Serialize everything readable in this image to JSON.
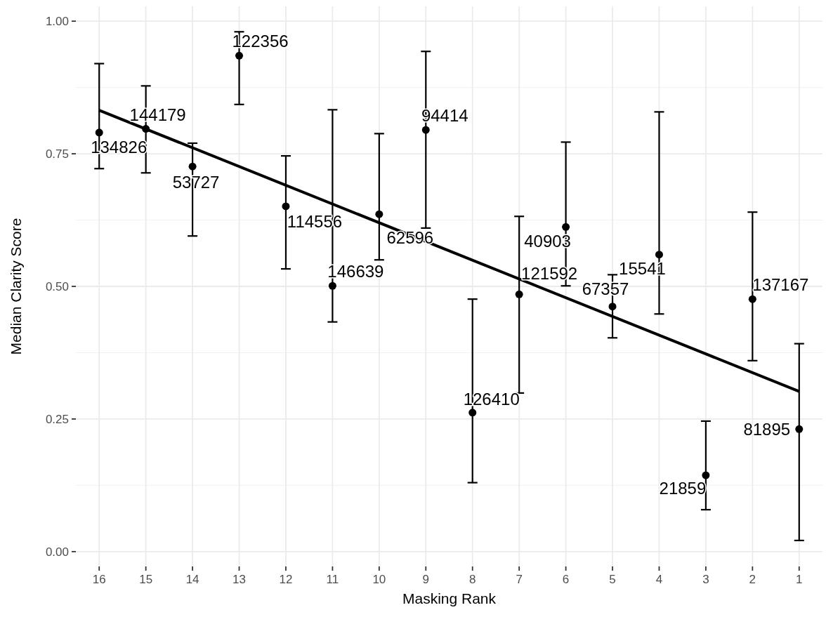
{
  "chart_data": {
    "type": "scatter",
    "xlabel": "Masking Rank",
    "ylabel": "Median Clarity Score",
    "categories": [
      "16",
      "15",
      "14",
      "13",
      "12",
      "11",
      "10",
      "9",
      "8",
      "7",
      "6",
      "5",
      "4",
      "3",
      "2",
      "1"
    ],
    "ylim": [
      -0.028,
      1.028
    ],
    "yticks": [
      {
        "value": 0,
        "label": "0.00"
      },
      {
        "value": 0.25,
        "label": "0.25"
      },
      {
        "value": 0.5,
        "label": "0.50"
      },
      {
        "value": 0.75,
        "label": "0.75"
      },
      {
        "value": 1,
        "label": "1.00"
      }
    ],
    "grid": true,
    "series": [
      {
        "color": "#000000",
        "marker": "circle",
        "values": [
          0.79,
          0.797,
          0.726,
          0.935,
          0.651,
          0.501,
          0.636,
          0.795,
          0.262,
          0.485,
          0.612,
          0.462,
          0.56,
          0.144,
          0.476,
          0.231
        ],
        "errors": [
          [
            0.722,
            0.92
          ],
          [
            0.714,
            0.878
          ],
          [
            0.595,
            0.77
          ],
          [
            0.843,
            0.98
          ],
          [
            0.533,
            0.746
          ],
          [
            0.433,
            0.833
          ],
          [
            0.55,
            0.788
          ],
          [
            0.61,
            0.943
          ],
          [
            0.13,
            0.476
          ],
          [
            0.299,
            0.632
          ],
          [
            0.501,
            0.772
          ],
          [
            0.403,
            0.522
          ],
          [
            0.448,
            0.829
          ],
          [
            0.079,
            0.246
          ],
          [
            0.36,
            0.64
          ],
          [
            0.021,
            0.392
          ]
        ]
      },
      {
        "type": "line",
        "marker": "none",
        "color": "#000000",
        "x": [
          "16",
          "1"
        ],
        "values": [
          0.832,
          0.302
        ]
      }
    ],
    "annotations": [
      {
        "text": "134826",
        "x": "16",
        "y": 0.79
      },
      {
        "text": "144179",
        "x": "15",
        "y": 0.797
      },
      {
        "text": "53727",
        "x": "14",
        "y": 0.726
      },
      {
        "text": "122356",
        "x": "13",
        "y": 0.935
      },
      {
        "text": "114556",
        "x": "12",
        "y": 0.651
      },
      {
        "text": "146639",
        "x": "11",
        "y": 0.501
      },
      {
        "text": "62596",
        "x": "10",
        "y": 0.636
      },
      {
        "text": "94414",
        "x": "9",
        "y": 0.795
      },
      {
        "text": "126410",
        "x": "8",
        "y": 0.262
      },
      {
        "text": "121592",
        "x": "7",
        "y": 0.485
      },
      {
        "text": "40903",
        "x": "6",
        "y": 0.612
      },
      {
        "text": "67357",
        "x": "5",
        "y": 0.462
      },
      {
        "text": "15541",
        "x": "4",
        "y": 0.56
      },
      {
        "text": "21859",
        "x": "3",
        "y": 0.144
      },
      {
        "text": "137167",
        "x": "2",
        "y": 0.476
      },
      {
        "text": "81895",
        "x": "1",
        "y": 0.231
      }
    ]
  }
}
